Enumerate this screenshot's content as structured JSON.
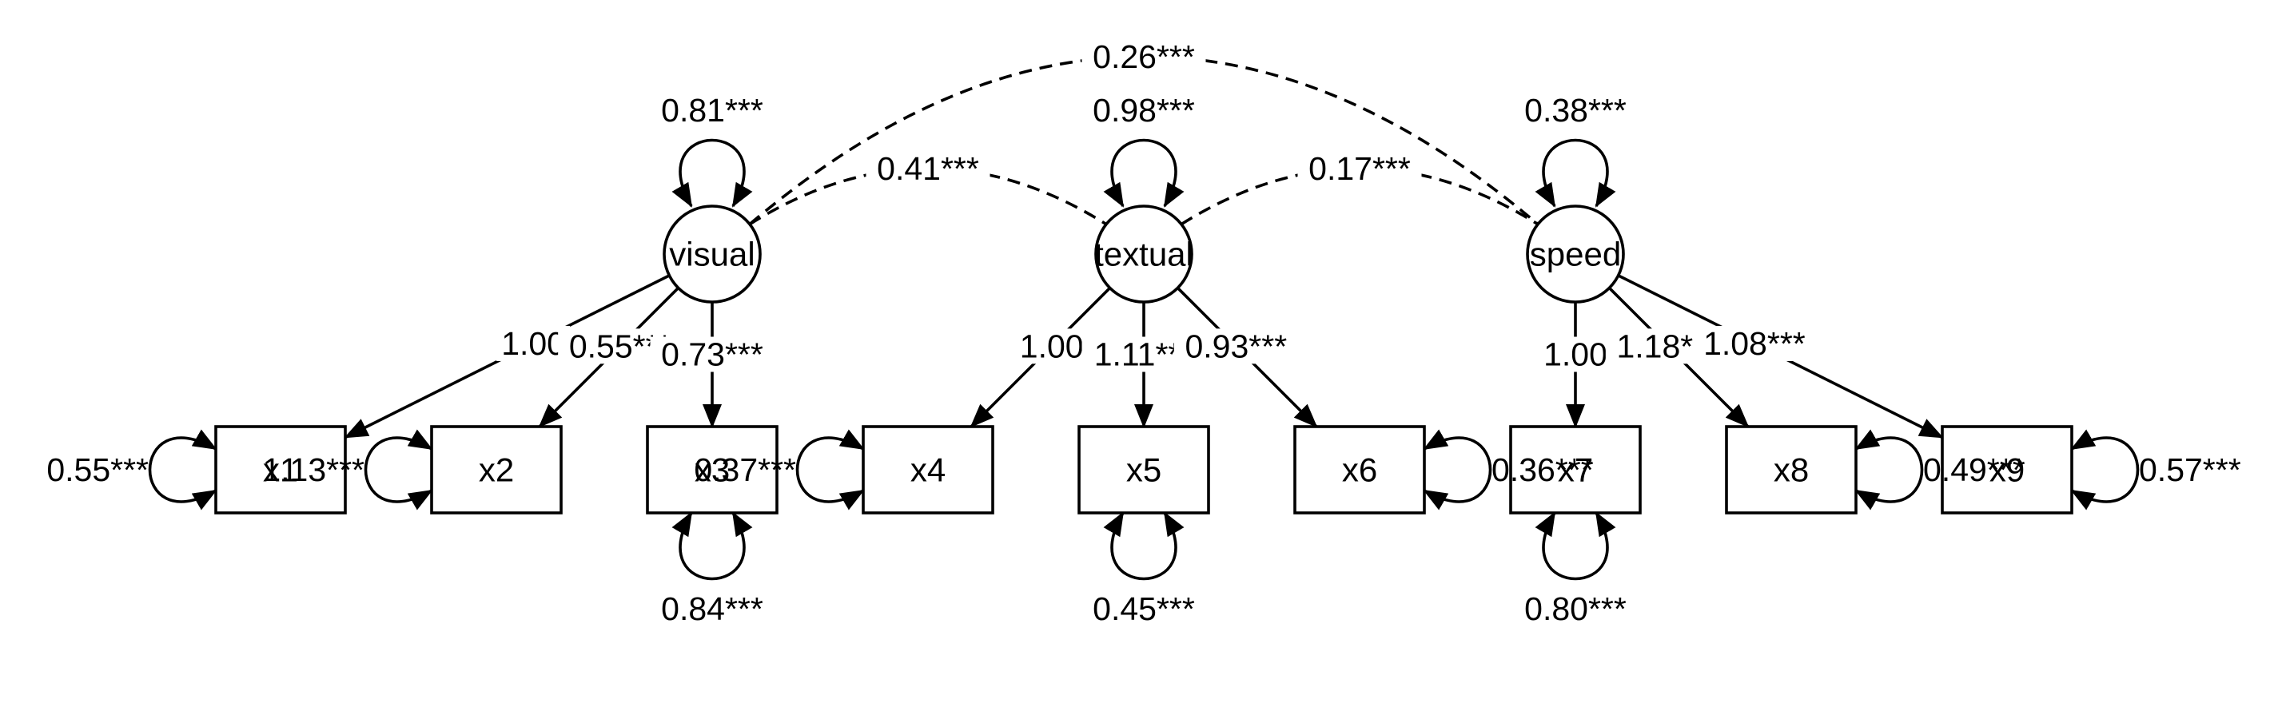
{
  "latents": [
    {
      "id": "visual",
      "label": "visual",
      "variance": "0.81***"
    },
    {
      "id": "textual",
      "label": "textual",
      "variance": "0.98***"
    },
    {
      "id": "speed",
      "label": "speed",
      "variance": "0.38***"
    }
  ],
  "observed": [
    {
      "id": "x1",
      "label": "x1",
      "residual": "0.55***",
      "residual_side": "left"
    },
    {
      "id": "x2",
      "label": "x2",
      "residual": "1.13***",
      "residual_side": "left"
    },
    {
      "id": "x3",
      "label": "x3",
      "residual": "0.84***",
      "residual_side": "below"
    },
    {
      "id": "x4",
      "label": "x4",
      "residual": "0.37***",
      "residual_side": "left"
    },
    {
      "id": "x5",
      "label": "x5",
      "residual": "0.45***",
      "residual_side": "below"
    },
    {
      "id": "x6",
      "label": "x6",
      "residual": "0.36***",
      "residual_side": "right"
    },
    {
      "id": "x7",
      "label": "x7",
      "residual": "0.80***",
      "residual_side": "below"
    },
    {
      "id": "x8",
      "label": "x8",
      "residual": "0.49***",
      "residual_side": "right"
    },
    {
      "id": "x9",
      "label": "x9",
      "residual": "0.57***",
      "residual_side": "right"
    }
  ],
  "loadings": [
    {
      "from": "visual",
      "to": "x1",
      "label": "1.00"
    },
    {
      "from": "visual",
      "to": "x2",
      "label": "0.55***"
    },
    {
      "from": "visual",
      "to": "x3",
      "label": "0.73***"
    },
    {
      "from": "textual",
      "to": "x4",
      "label": "1.00"
    },
    {
      "from": "textual",
      "to": "x5",
      "label": "1.11***"
    },
    {
      "from": "textual",
      "to": "x6",
      "label": "0.93***"
    },
    {
      "from": "speed",
      "to": "x7",
      "label": "1.00"
    },
    {
      "from": "speed",
      "to": "x8",
      "label": "1.18***"
    },
    {
      "from": "speed",
      "to": "x9",
      "label": "1.08***"
    }
  ],
  "covariances": [
    {
      "a": "visual",
      "b": "textual",
      "label": "0.41***"
    },
    {
      "a": "textual",
      "b": "speed",
      "label": "0.17***"
    },
    {
      "a": "visual",
      "b": "speed",
      "label": "0.26***"
    }
  ]
}
